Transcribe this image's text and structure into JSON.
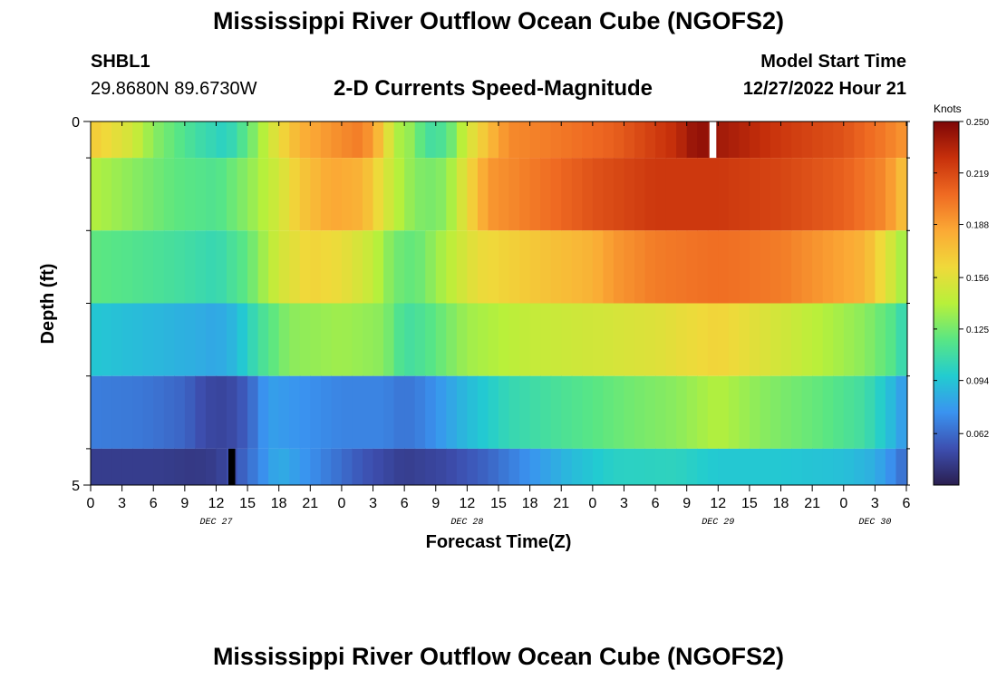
{
  "title": "Mississippi River Outflow Ocean Cube (NGOFS2)",
  "station": {
    "id": "SHBL1",
    "coords": "29.8680N  89.6730W"
  },
  "model_start": {
    "label": "Model Start Time",
    "value": "12/27/2022 Hour 21"
  },
  "footer_title": "Mississippi River Outflow Ocean Cube (NGOFS2)",
  "chart_data": {
    "type": "heatmap",
    "title": "2-D Currents Speed-Magnitude",
    "xlabel": "Forecast Time(Z)",
    "ylabel": "Depth (ft)",
    "x_tick_labels": [
      "0",
      "3",
      "6",
      "9",
      "12",
      "15",
      "18",
      "21",
      "0",
      "3",
      "6",
      "9",
      "12",
      "15",
      "18",
      "21",
      "0",
      "3",
      "6",
      "9",
      "12",
      "15",
      "18",
      "21",
      "0",
      "3",
      "6"
    ],
    "x_range_hours": [
      0,
      78
    ],
    "y_tick_labels": [
      "0",
      "5"
    ],
    "ylim": [
      0,
      5
    ],
    "date_labels": [
      {
        "label": "DEC 27",
        "hour": 12
      },
      {
        "label": "DEC 28",
        "hour": 36
      },
      {
        "label": "DEC 29",
        "hour": 60
      },
      {
        "label": "DEC 30",
        "hour": 75
      }
    ],
    "colorbar": {
      "unit": "Knots",
      "tick_values": [
        "0.250",
        "0.219",
        "0.188",
        "0.156",
        "0.125",
        "0.094",
        "0.062"
      ],
      "min": 0.031,
      "max": 0.25,
      "colors": [
        "#2a1e4f",
        "#3d4fb0",
        "#3a93f0",
        "#22ccd0",
        "#59e684",
        "#b8f03a",
        "#f0d93a",
        "#fba935",
        "#ef6a22",
        "#c7300b",
        "#7e0607"
      ]
    },
    "layers": [
      {
        "depth_range": "0-0.5",
        "anchors": [
          [
            0,
            0.17
          ],
          [
            4,
            0.15
          ],
          [
            6,
            0.13
          ],
          [
            10,
            0.11
          ],
          [
            13,
            0.1
          ],
          [
            15,
            0.12
          ],
          [
            18,
            0.16
          ],
          [
            20,
            0.18
          ],
          [
            24,
            0.195
          ],
          [
            26,
            0.2
          ],
          [
            28,
            0.17
          ],
          [
            29,
            0.14
          ],
          [
            31,
            0.13
          ],
          [
            32,
            0.11
          ],
          [
            34,
            0.115
          ],
          [
            36,
            0.15
          ],
          [
            38,
            0.175
          ],
          [
            40,
            0.195
          ],
          [
            44,
            0.2
          ],
          [
            50,
            0.21
          ],
          [
            56,
            0.23
          ],
          [
            58,
            0.245
          ],
          [
            60,
            0.24
          ],
          [
            62,
            0.235
          ],
          [
            66,
            0.225
          ],
          [
            72,
            0.215
          ],
          [
            76,
            0.2
          ],
          [
            78,
            0.19
          ]
        ]
      },
      {
        "depth_range": "0.5-1.5",
        "anchors": [
          [
            0,
            0.14
          ],
          [
            4,
            0.13
          ],
          [
            8,
            0.12
          ],
          [
            12,
            0.115
          ],
          [
            15,
            0.13
          ],
          [
            18,
            0.15
          ],
          [
            20,
            0.17
          ],
          [
            23,
            0.185
          ],
          [
            26,
            0.18
          ],
          [
            28,
            0.155
          ],
          [
            30,
            0.135
          ],
          [
            32,
            0.125
          ],
          [
            34,
            0.13
          ],
          [
            36,
            0.16
          ],
          [
            38,
            0.19
          ],
          [
            42,
            0.2
          ],
          [
            48,
            0.215
          ],
          [
            54,
            0.225
          ],
          [
            60,
            0.225
          ],
          [
            66,
            0.22
          ],
          [
            72,
            0.21
          ],
          [
            76,
            0.195
          ],
          [
            78,
            0.17
          ]
        ]
      },
      {
        "depth_range": "1.5-2.5",
        "anchors": [
          [
            0,
            0.12
          ],
          [
            5,
            0.115
          ],
          [
            9,
            0.11
          ],
          [
            12,
            0.105
          ],
          [
            15,
            0.12
          ],
          [
            18,
            0.15
          ],
          [
            21,
            0.165
          ],
          [
            24,
            0.16
          ],
          [
            27,
            0.145
          ],
          [
            29,
            0.125
          ],
          [
            31,
            0.12
          ],
          [
            34,
            0.14
          ],
          [
            37,
            0.16
          ],
          [
            42,
            0.17
          ],
          [
            48,
            0.18
          ],
          [
            50,
            0.19
          ],
          [
            54,
            0.2
          ],
          [
            60,
            0.205
          ],
          [
            66,
            0.2
          ],
          [
            70,
            0.19
          ],
          [
            74,
            0.18
          ],
          [
            77,
            0.145
          ],
          [
            78,
            0.13
          ]
        ]
      },
      {
        "depth_range": "2.5-3.5",
        "anchors": [
          [
            0,
            0.095
          ],
          [
            5,
            0.09
          ],
          [
            10,
            0.085
          ],
          [
            12,
            0.082
          ],
          [
            14,
            0.09
          ],
          [
            16,
            0.11
          ],
          [
            19,
            0.13
          ],
          [
            24,
            0.135
          ],
          [
            28,
            0.13
          ],
          [
            30,
            0.11
          ],
          [
            32,
            0.115
          ],
          [
            36,
            0.135
          ],
          [
            42,
            0.145
          ],
          [
            48,
            0.15
          ],
          [
            54,
            0.155
          ],
          [
            60,
            0.165
          ],
          [
            62,
            0.16
          ],
          [
            66,
            0.15
          ],
          [
            70,
            0.14
          ],
          [
            74,
            0.13
          ],
          [
            77,
            0.115
          ],
          [
            78,
            0.1
          ]
        ]
      },
      {
        "depth_range": "3.5-4.5",
        "anchors": [
          [
            0,
            0.068
          ],
          [
            5,
            0.066
          ],
          [
            9,
            0.06
          ],
          [
            11,
            0.05
          ],
          [
            13,
            0.048
          ],
          [
            15,
            0.058
          ],
          [
            17,
            0.08
          ],
          [
            20,
            0.075
          ],
          [
            24,
            0.07
          ],
          [
            28,
            0.07
          ],
          [
            30,
            0.065
          ],
          [
            32,
            0.07
          ],
          [
            36,
            0.09
          ],
          [
            40,
            0.105
          ],
          [
            46,
            0.115
          ],
          [
            52,
            0.125
          ],
          [
            56,
            0.13
          ],
          [
            60,
            0.14
          ],
          [
            64,
            0.13
          ],
          [
            70,
            0.12
          ],
          [
            74,
            0.11
          ],
          [
            76,
            0.095
          ],
          [
            78,
            0.075
          ]
        ]
      },
      {
        "depth_range": "4.5-5",
        "anchors": [
          [
            0,
            0.045
          ],
          [
            6,
            0.045
          ],
          [
            10,
            0.043
          ],
          [
            12,
            0.045
          ],
          [
            14,
            0.055
          ],
          [
            16,
            0.07
          ],
          [
            18,
            0.085
          ],
          [
            22,
            0.07
          ],
          [
            26,
            0.055
          ],
          [
            30,
            0.045
          ],
          [
            34,
            0.05
          ],
          [
            38,
            0.06
          ],
          [
            42,
            0.075
          ],
          [
            46,
            0.09
          ],
          [
            50,
            0.1
          ],
          [
            56,
            0.102
          ],
          [
            60,
            0.095
          ],
          [
            66,
            0.095
          ],
          [
            72,
            0.092
          ],
          [
            75,
            0.085
          ],
          [
            77,
            0.07
          ],
          [
            78,
            0.06
          ]
        ]
      }
    ],
    "missing_cells": [
      {
        "layer": 0,
        "hour": 59,
        "color": "#ffffff"
      },
      {
        "layer": 5,
        "hour": 13,
        "color": "#000000"
      }
    ]
  }
}
